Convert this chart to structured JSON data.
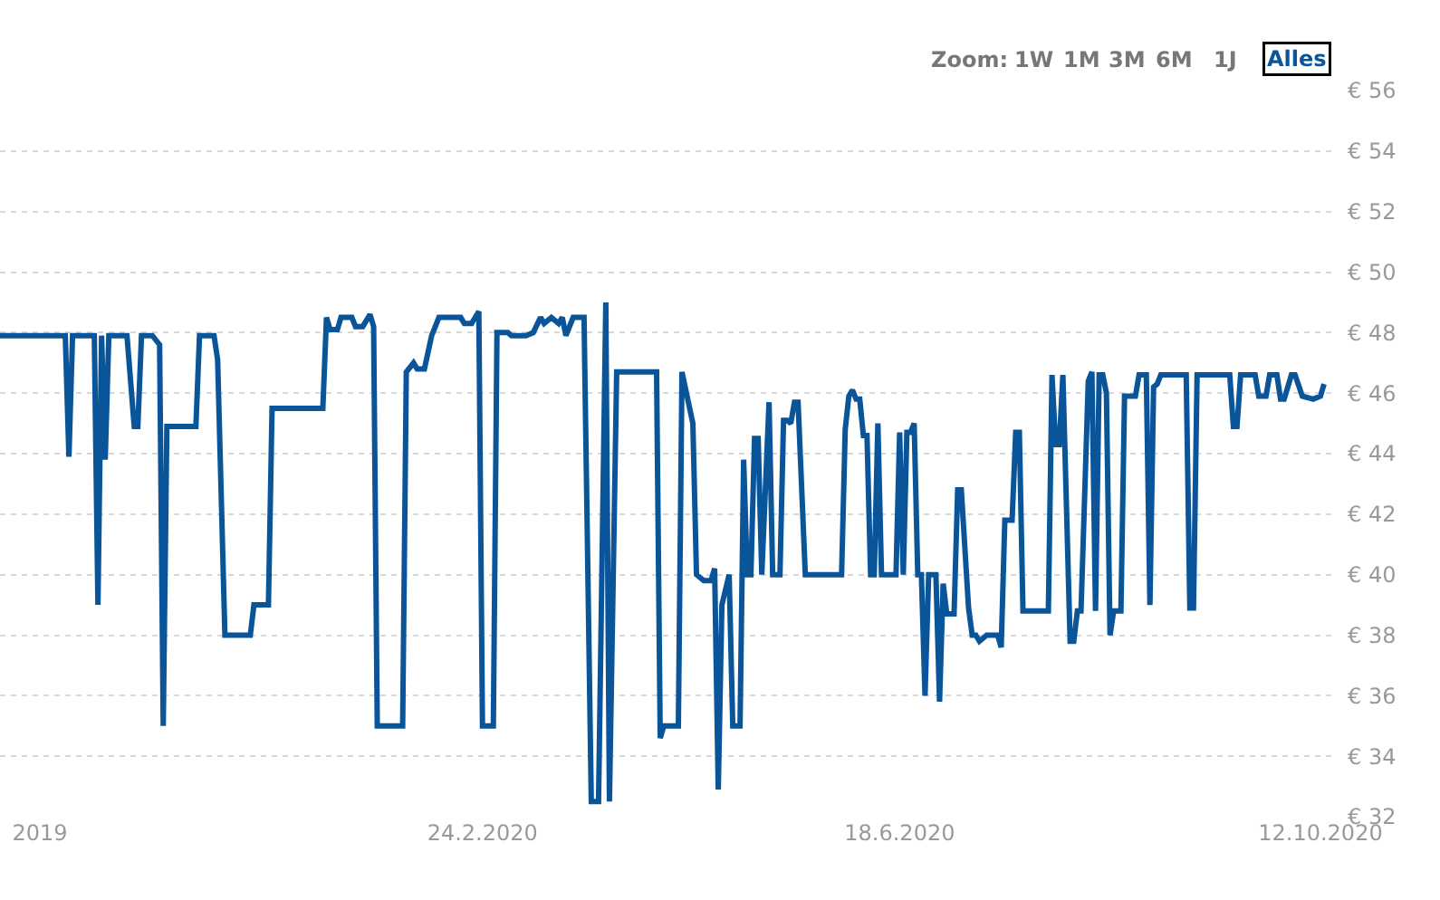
{
  "chart_data": {
    "type": "line",
    "annotations": [
      "Zoom:",
      "1W",
      "1M",
      "3M",
      "6M",
      "1J",
      "Alles"
    ],
    "x": [
      "2019-10-14",
      "2019-11-01",
      "2019-11-02",
      "2019-11-03",
      "2019-11-09",
      "2019-11-10",
      "2019-11-11",
      "2019-11-12",
      "2019-11-13",
      "2019-11-18",
      "2019-11-20",
      "2019-11-21",
      "2019-11-22",
      "2019-11-25",
      "2019-11-27",
      "2019-11-28",
      "2019-11-29",
      "2019-12-07",
      "2019-12-08",
      "2019-12-12",
      "2019-12-13",
      "2019-12-15",
      "2019-12-22",
      "2019-12-23",
      "2019-12-27",
      "2019-12-28",
      "2020-01-11",
      "2020-01-12",
      "2020-01-13",
      "2020-01-15",
      "2020-01-16",
      "2020-01-19",
      "2020-01-20",
      "2020-01-22",
      "2020-01-24",
      "2020-01-25",
      "2020-01-26",
      "2020-02-02",
      "2020-02-03",
      "2020-02-05",
      "2020-02-06",
      "2020-02-08",
      "2020-02-10",
      "2020-02-12",
      "2020-02-18",
      "2020-02-19",
      "2020-02-21",
      "2020-02-23",
      "2020-02-24",
      "2020-02-27",
      "2020-02-28",
      "2020-03-02",
      "2020-03-03",
      "2020-03-07",
      "2020-03-09",
      "2020-03-11",
      "2020-03-12",
      "2020-03-14",
      "2020-03-16",
      "2020-03-17",
      "2020-03-18",
      "2020-03-20",
      "2020-03-23",
      "2020-03-25",
      "2020-03-27",
      "2020-03-29",
      "2020-03-30",
      "2020-04-01",
      "2020-04-12",
      "2020-04-13",
      "2020-04-14",
      "2020-04-18",
      "2020-04-19",
      "2020-04-22",
      "2020-04-23",
      "2020-04-25",
      "2020-04-27",
      "2020-04-28",
      "2020-04-29",
      "2020-04-30",
      "2020-05-02",
      "2020-05-03",
      "2020-05-05",
      "2020-05-06",
      "2020-05-07",
      "2020-05-08",
      "2020-05-09",
      "2020-05-10",
      "2020-05-11",
      "2020-05-13",
      "2020-05-14",
      "2020-05-16",
      "2020-05-17",
      "2020-05-18",
      "2020-05-19",
      "2020-05-20",
      "2020-05-21",
      "2020-05-23",
      "2020-06-02",
      "2020-06-03",
      "2020-06-04",
      "2020-06-05",
      "2020-06-06",
      "2020-06-07",
      "2020-06-08",
      "2020-06-09",
      "2020-06-10",
      "2020-06-11",
      "2020-06-12",
      "2020-06-13",
      "2020-06-17",
      "2020-06-18",
      "2020-06-19",
      "2020-06-20",
      "2020-06-21",
      "2020-06-22",
      "2020-06-23",
      "2020-06-24",
      "2020-06-25",
      "2020-06-26",
      "2020-06-28",
      "2020-06-29",
      "2020-06-30",
      "2020-07-01",
      "2020-07-03",
      "2020-07-04",
      "2020-07-05",
      "2020-07-07",
      "2020-07-08",
      "2020-07-09",
      "2020-07-10",
      "2020-07-12",
      "2020-07-15",
      "2020-07-16",
      "2020-07-17",
      "2020-07-19",
      "2020-07-20",
      "2020-07-21",
      "2020-07-22",
      "2020-07-29",
      "2020-07-30",
      "2020-07-31",
      "2020-08-01",
      "2020-08-02",
      "2020-08-04",
      "2020-08-05",
      "2020-08-06",
      "2020-08-07",
      "2020-08-09",
      "2020-08-10",
      "2020-08-11",
      "2020-08-12",
      "2020-08-13",
      "2020-08-14",
      "2020-08-15",
      "2020-08-16",
      "2020-08-18",
      "2020-08-19",
      "2020-08-22",
      "2020-08-23",
      "2020-08-25",
      "2020-08-26",
      "2020-08-27",
      "2020-08-28",
      "2020-08-29",
      "2020-09-05",
      "2020-09-06",
      "2020-09-07",
      "2020-09-08",
      "2020-09-17",
      "2020-09-18",
      "2020-09-19",
      "2020-09-20",
      "2020-09-24",
      "2020-09-25",
      "2020-09-27",
      "2020-09-28",
      "2020-09-30",
      "2020-10-01",
      "2020-10-02",
      "2020-10-04",
      "2020-10-05",
      "2020-10-07",
      "2020-10-10",
      "2020-10-12",
      "2020-10-13"
    ],
    "series": [
      {
        "color": "#0a5499",
        "values": [
          47.9,
          47.9,
          43.9,
          47.9,
          47.9,
          39.0,
          47.9,
          43.8,
          47.9,
          47.9,
          44.9,
          44.9,
          47.9,
          47.9,
          47.6,
          35.0,
          44.9,
          44.9,
          47.9,
          47.9,
          47.1,
          38.0,
          38.0,
          39.0,
          39.0,
          45.5,
          45.5,
          48.5,
          48.1,
          48.1,
          48.5,
          48.5,
          48.2,
          48.2,
          48.6,
          48.2,
          35.0,
          35.0,
          46.7,
          47.0,
          46.8,
          46.8,
          47.9,
          48.5,
          48.5,
          48.3,
          48.3,
          48.7,
          35.0,
          35.0,
          48.0,
          48.0,
          47.9,
          47.9,
          48.0,
          48.5,
          48.3,
          48.5,
          48.3,
          48.5,
          47.9,
          48.5,
          48.5,
          32.5,
          32.5,
          49.0,
          32.5,
          46.7,
          46.7,
          34.6,
          35.0,
          35.0,
          46.7,
          45.0,
          40.0,
          39.8,
          39.8,
          40.2,
          32.9,
          39.0,
          40.0,
          35.0,
          35.0,
          43.8,
          40.0,
          40.0,
          44.5,
          44.5,
          40.0,
          45.7,
          40.0,
          40.0,
          45.1,
          45.1,
          45.0,
          45.7,
          45.7,
          40.0,
          40.0,
          44.8,
          45.9,
          46.1,
          45.8,
          45.8,
          44.6,
          44.6,
          40.0,
          40.0,
          45.0,
          40.0,
          40.0,
          44.7,
          40.0,
          44.7,
          44.7,
          45.0,
          40.0,
          40.0,
          36.0,
          40.0,
          40.0,
          35.8,
          39.7,
          38.7,
          38.7,
          42.8,
          42.8,
          38.9,
          38.0,
          38.0,
          37.8,
          38.0,
          38.0,
          37.6,
          41.8,
          41.8,
          44.7,
          44.7,
          38.8,
          38.8,
          46.6,
          44.3,
          44.3,
          46.6,
          37.8,
          37.8,
          38.8,
          38.8,
          46.4,
          46.7,
          38.8,
          46.6,
          46.6,
          46.0,
          38.0,
          38.8,
          38.8,
          45.9,
          45.9,
          46.6,
          46.6,
          39.0,
          46.2,
          46.3,
          46.6,
          46.6,
          38.9,
          38.9,
          46.6,
          46.6,
          44.9,
          44.9,
          46.6,
          46.6,
          45.9,
          45.9,
          46.6,
          46.6,
          45.8,
          45.8,
          46.6,
          46.6,
          45.9,
          45.8,
          45.9,
          46.3
        ]
      }
    ],
    "xlim": [
      "2019-10-14",
      "2020-10-15"
    ],
    "xticks": [
      {
        "value": "2019-10-25",
        "label": "2019"
      },
      {
        "value": "2020-02-24",
        "label": "24.2.2020"
      },
      {
        "value": "2020-06-18",
        "label": "18.6.2020"
      },
      {
        "value": "2020-10-12",
        "label": "12.10.2020"
      }
    ],
    "ylim": [
      32,
      56
    ],
    "yticks": [
      {
        "value": 32,
        "label": "€ 32"
      },
      {
        "value": 34,
        "label": "€ 34"
      },
      {
        "value": 36,
        "label": "€ 36"
      },
      {
        "value": 38,
        "label": "€ 38"
      },
      {
        "value": 40,
        "label": "€ 40"
      },
      {
        "value": 42,
        "label": "€ 42"
      },
      {
        "value": 44,
        "label": "€ 44"
      },
      {
        "value": 46,
        "label": "€ 46"
      },
      {
        "value": 48,
        "label": "€ 48"
      },
      {
        "value": 50,
        "label": "€ 50"
      },
      {
        "value": 52,
        "label": "€ 52"
      },
      {
        "value": 54,
        "label": "€ 54"
      },
      {
        "value": 56,
        "label": "€ 56"
      }
    ],
    "grid": "y",
    "marker": "none",
    "line_style": "solid"
  }
}
